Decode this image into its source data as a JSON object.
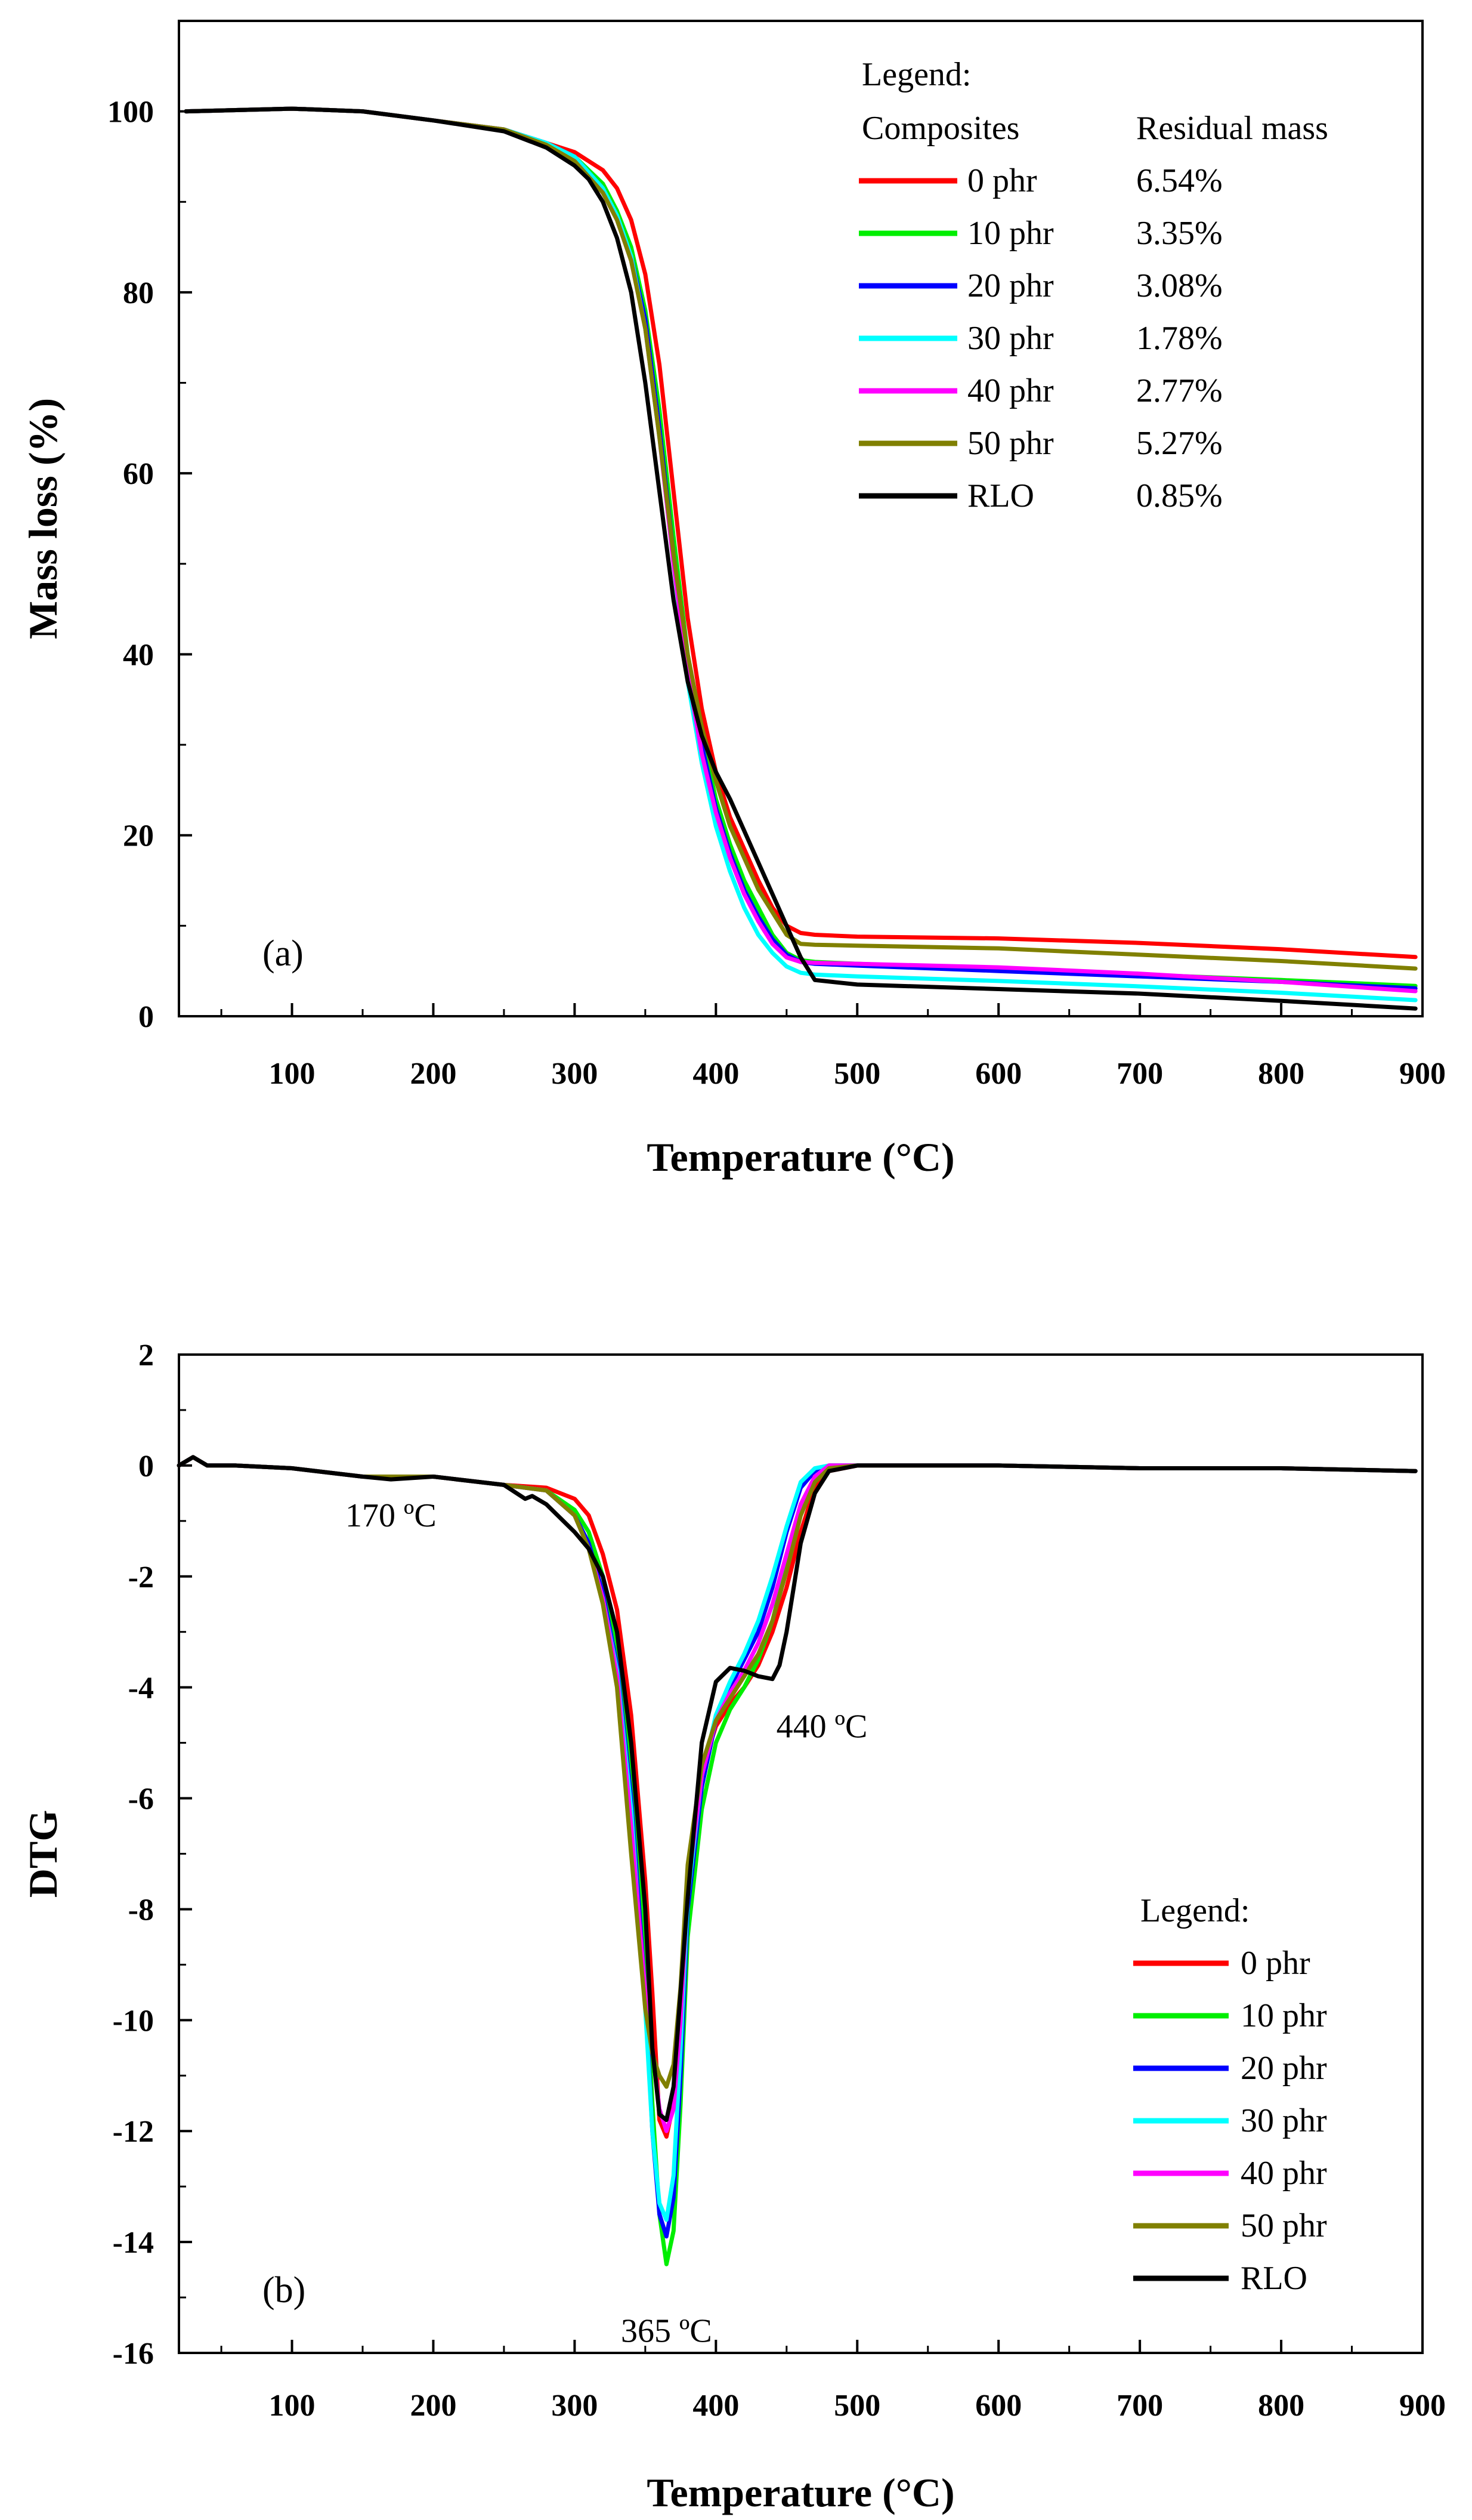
{
  "chart_data": [
    {
      "type": "line",
      "panel_label": "(a)",
      "xlabel": "Temperature (°C)",
      "ylabel": "Mass loss (%)",
      "xlim": [
        20,
        900
      ],
      "ylim": [
        0,
        110
      ],
      "xticks": [
        100,
        200,
        300,
        400,
        500,
        600,
        700,
        800,
        900
      ],
      "yticks": [
        0,
        20,
        40,
        60,
        80,
        100
      ],
      "legend": {
        "title": "Legend:",
        "col1_header": "Composites",
        "col2_header": "Residual mass",
        "position": "top-right"
      },
      "series": [
        {
          "name": "0 phr",
          "residual": "6.54%",
          "color": "#ff0000",
          "x": [
            25,
            100,
            150,
            200,
            250,
            280,
            300,
            320,
            330,
            340,
            350,
            360,
            370,
            380,
            390,
            400,
            410,
            420,
            430,
            440,
            450,
            460,
            470,
            500,
            600,
            700,
            800,
            895
          ],
          "y": [
            100,
            100.3,
            100,
            99,
            98,
            96.5,
            95.5,
            93.5,
            91.5,
            88,
            82,
            72,
            58,
            44,
            34,
            27,
            22,
            18.5,
            15,
            12,
            10,
            9.2,
            9,
            8.8,
            8.6,
            8.1,
            7.4,
            6.54
          ]
        },
        {
          "name": "10 phr",
          "residual": "3.35%",
          "color": "#00ee00",
          "x": [
            25,
            100,
            150,
            200,
            250,
            280,
            300,
            320,
            330,
            340,
            350,
            360,
            370,
            380,
            390,
            400,
            410,
            420,
            430,
            440,
            450,
            460,
            470,
            500,
            600,
            700,
            800,
            895
          ],
          "y": [
            100,
            100.3,
            100,
            99,
            98,
            96.5,
            95,
            92,
            89,
            85,
            78,
            67,
            53,
            40,
            31,
            24,
            19,
            15,
            12,
            9,
            7,
            6.2,
            6,
            5.8,
            5.2,
            4.6,
            4,
            3.35
          ]
        },
        {
          "name": "20 phr",
          "residual": "3.08%",
          "color": "#0000ff",
          "x": [
            25,
            100,
            150,
            200,
            250,
            280,
            300,
            320,
            330,
            340,
            350,
            360,
            370,
            380,
            390,
            400,
            410,
            420,
            430,
            440,
            450,
            460,
            470,
            500,
            600,
            700,
            800,
            895
          ],
          "y": [
            100,
            100.3,
            100,
            99,
            98,
            96.5,
            95,
            91.5,
            88.5,
            84,
            77,
            65,
            51,
            39,
            30,
            23,
            18,
            14,
            11,
            8.5,
            6.8,
            6,
            5.8,
            5.6,
            5,
            4.4,
            3.8,
            3.08
          ]
        },
        {
          "name": "30 phr",
          "residual": "1.78%",
          "color": "#00ffff",
          "x": [
            25,
            100,
            150,
            200,
            250,
            280,
            300,
            320,
            330,
            340,
            350,
            360,
            370,
            380,
            390,
            400,
            410,
            420,
            430,
            440,
            450,
            460,
            470,
            500,
            600,
            700,
            800,
            895
          ],
          "y": [
            100,
            100.3,
            100,
            99,
            98,
            96.5,
            95,
            91.5,
            88.5,
            84,
            76,
            64,
            50,
            37,
            28,
            21,
            16,
            12,
            9,
            7,
            5.5,
            4.8,
            4.6,
            4.4,
            3.9,
            3.3,
            2.6,
            1.78
          ]
        },
        {
          "name": "40 phr",
          "residual": "2.77%",
          "color": "#ff00ff",
          "x": [
            25,
            100,
            150,
            200,
            250,
            280,
            300,
            320,
            330,
            340,
            350,
            360,
            370,
            380,
            390,
            400,
            410,
            420,
            430,
            440,
            450,
            460,
            470,
            500,
            600,
            700,
            800,
            895
          ],
          "y": [
            100,
            100.3,
            100,
            99,
            98,
            96.2,
            94.5,
            91,
            88,
            83.5,
            76,
            64,
            50,
            38,
            29,
            22.5,
            17.5,
            13.5,
            10.5,
            8,
            6.5,
            6,
            5.9,
            5.8,
            5.4,
            4.7,
            3.8,
            2.77
          ]
        },
        {
          "name": "50 phr",
          "residual": "5.27%",
          "color": "#808000",
          "x": [
            25,
            100,
            150,
            200,
            250,
            280,
            300,
            320,
            330,
            340,
            350,
            360,
            370,
            380,
            390,
            400,
            410,
            420,
            430,
            440,
            450,
            460,
            470,
            500,
            600,
            700,
            800,
            895
          ],
          "y": [
            100,
            100.3,
            100,
            99,
            98,
            96.3,
            94.5,
            91,
            88,
            83.5,
            76,
            64,
            51,
            40,
            32,
            26,
            21,
            17.5,
            14,
            11.5,
            9,
            8,
            7.9,
            7.8,
            7.5,
            6.8,
            6.1,
            5.27
          ]
        },
        {
          "name": "RLO",
          "residual": "0.85%",
          "color": "#000000",
          "x": [
            25,
            100,
            150,
            200,
            250,
            280,
            300,
            310,
            320,
            330,
            340,
            350,
            360,
            370,
            380,
            390,
            400,
            410,
            420,
            430,
            440,
            450,
            460,
            470,
            500,
            600,
            700,
            800,
            895
          ],
          "y": [
            100,
            100.3,
            100,
            99,
            97.8,
            96,
            94,
            92.5,
            90,
            86,
            80,
            70,
            58,
            46,
            37,
            31,
            27,
            24,
            20.5,
            17,
            13.5,
            10,
            6.5,
            4,
            3.5,
            3,
            2.5,
            1.7,
            0.85
          ]
        }
      ]
    },
    {
      "type": "line",
      "panel_label": "(b)",
      "xlabel": "Temperature (°C)",
      "ylabel": "DTG",
      "xlim": [
        20,
        900
      ],
      "ylim": [
        -16,
        2
      ],
      "xticks": [
        100,
        200,
        300,
        400,
        500,
        600,
        700,
        800,
        900
      ],
      "yticks": [
        2,
        0,
        -2,
        -4,
        -6,
        -8,
        -10,
        -12,
        -14,
        -16
      ],
      "legend": {
        "title": "Legend:",
        "position": "bottom-right"
      },
      "annotations": [
        {
          "text": "170 ºC",
          "x": 170,
          "y": -1.1
        },
        {
          "text": "440 ºC",
          "x": 475,
          "y": -4.9
        },
        {
          "text": "365 ºC",
          "x": 365,
          "y": -15.8
        }
      ],
      "series": [
        {
          "name": "0 phr",
          "color": "#ff0000",
          "x": [
            20,
            30,
            40,
            60,
            100,
            150,
            170,
            200,
            250,
            280,
            300,
            310,
            320,
            330,
            340,
            350,
            355,
            360,
            365,
            370,
            375,
            380,
            390,
            400,
            410,
            420,
            430,
            440,
            450,
            460,
            470,
            480,
            500,
            600,
            700,
            800,
            895
          ],
          "y": [
            0,
            0.15,
            0,
            0,
            -0.05,
            -0.2,
            -0.2,
            -0.2,
            -0.35,
            -0.4,
            -0.6,
            -0.9,
            -1.6,
            -2.6,
            -4.5,
            -7.5,
            -9.5,
            -11.8,
            -12.1,
            -11.5,
            -9.5,
            -7.5,
            -5.5,
            -4.7,
            -4.3,
            -4,
            -3.6,
            -3,
            -2.2,
            -1.2,
            -0.4,
            -0.1,
            0,
            0,
            -0.05,
            -0.05,
            -0.1
          ]
        },
        {
          "name": "10 phr",
          "color": "#00ee00",
          "x": [
            20,
            30,
            40,
            60,
            100,
            150,
            170,
            200,
            250,
            280,
            300,
            310,
            320,
            330,
            340,
            350,
            355,
            360,
            365,
            370,
            375,
            380,
            390,
            400,
            410,
            420,
            430,
            440,
            450,
            460,
            470,
            480,
            500,
            600,
            700,
            800,
            895
          ],
          "y": [
            0,
            0.15,
            0,
            0,
            -0.05,
            -0.2,
            -0.2,
            -0.2,
            -0.35,
            -0.45,
            -0.8,
            -1.2,
            -2,
            -3.2,
            -5.5,
            -9,
            -11.5,
            -13.5,
            -14.4,
            -13.8,
            -11.5,
            -8.5,
            -6.2,
            -5,
            -4.4,
            -4,
            -3.5,
            -2.8,
            -1.8,
            -0.8,
            -0.2,
            0,
            0,
            0,
            -0.05,
            -0.05,
            -0.1
          ]
        },
        {
          "name": "20 phr",
          "color": "#0000ff",
          "x": [
            20,
            30,
            40,
            60,
            100,
            150,
            170,
            200,
            250,
            280,
            300,
            310,
            320,
            330,
            340,
            350,
            355,
            360,
            365,
            370,
            375,
            380,
            390,
            400,
            410,
            420,
            430,
            440,
            450,
            460,
            470,
            480,
            500,
            600,
            700,
            800,
            895
          ],
          "y": [
            0,
            0.15,
            0,
            0,
            -0.05,
            -0.2,
            -0.2,
            -0.2,
            -0.35,
            -0.45,
            -0.9,
            -1.4,
            -2.3,
            -3.6,
            -6,
            -9.5,
            -12,
            -13.5,
            -13.9,
            -13.2,
            -11,
            -8,
            -5.8,
            -4.6,
            -4,
            -3.5,
            -3,
            -2.2,
            -1.2,
            -0.4,
            -0.1,
            0,
            0,
            0,
            -0.05,
            -0.05,
            -0.1
          ]
        },
        {
          "name": "30 phr",
          "color": "#00ffff",
          "x": [
            20,
            30,
            40,
            60,
            100,
            150,
            170,
            200,
            250,
            280,
            300,
            310,
            320,
            330,
            340,
            350,
            355,
            360,
            365,
            370,
            375,
            380,
            390,
            400,
            410,
            420,
            430,
            440,
            450,
            460,
            470,
            480,
            500,
            600,
            700,
            800,
            895
          ],
          "y": [
            0,
            0.15,
            0,
            0,
            -0.05,
            -0.2,
            -0.2,
            -0.2,
            -0.35,
            -0.45,
            -0.9,
            -1.5,
            -2.4,
            -3.7,
            -6.2,
            -9.8,
            -12,
            -13.3,
            -13.6,
            -12.8,
            -10.5,
            -7.8,
            -5.6,
            -4.5,
            -3.9,
            -3.4,
            -2.8,
            -2,
            -1.1,
            -0.3,
            -0.05,
            0,
            0,
            0,
            -0.05,
            -0.05,
            -0.1
          ]
        },
        {
          "name": "40 phr",
          "color": "#ff00ff",
          "x": [
            20,
            30,
            40,
            60,
            100,
            150,
            170,
            200,
            250,
            280,
            300,
            310,
            320,
            330,
            340,
            350,
            355,
            360,
            365,
            370,
            375,
            380,
            390,
            400,
            410,
            420,
            430,
            440,
            450,
            460,
            470,
            480,
            500,
            600,
            700,
            800,
            895
          ],
          "y": [
            0,
            0.15,
            0,
            0,
            -0.05,
            -0.2,
            -0.2,
            -0.2,
            -0.35,
            -0.45,
            -0.9,
            -1.5,
            -2.4,
            -3.8,
            -6.5,
            -9.5,
            -10.5,
            -11.6,
            -12,
            -11.6,
            -10,
            -7.6,
            -5.6,
            -4.6,
            -4.1,
            -3.7,
            -3.2,
            -2.5,
            -1.6,
            -0.7,
            -0.2,
            0,
            0,
            0,
            -0.05,
            -0.05,
            -0.1
          ]
        },
        {
          "name": "50 phr",
          "color": "#808000",
          "x": [
            20,
            30,
            40,
            60,
            100,
            150,
            170,
            200,
            250,
            280,
            300,
            310,
            320,
            330,
            340,
            350,
            355,
            360,
            365,
            370,
            375,
            380,
            390,
            400,
            410,
            420,
            430,
            440,
            450,
            460,
            470,
            480,
            500,
            600,
            700,
            800,
            895
          ],
          "y": [
            0,
            0.15,
            0,
            0,
            -0.05,
            -0.2,
            -0.2,
            -0.2,
            -0.35,
            -0.45,
            -0.9,
            -1.5,
            -2.5,
            -4,
            -7,
            -9.8,
            -10.6,
            -11,
            -11.2,
            -10.8,
            -9.4,
            -7.2,
            -5.4,
            -4.6,
            -4.2,
            -3.8,
            -3.4,
            -2.8,
            -1.9,
            -0.9,
            -0.3,
            -0.05,
            0,
            0,
            -0.05,
            -0.05,
            -0.1
          ]
        },
        {
          "name": "RLO",
          "color": "#000000",
          "x": [
            20,
            30,
            40,
            60,
            100,
            150,
            170,
            200,
            250,
            265,
            270,
            280,
            300,
            310,
            320,
            330,
            340,
            350,
            355,
            360,
            365,
            370,
            375,
            380,
            390,
            400,
            410,
            420,
            430,
            440,
            445,
            450,
            455,
            460,
            470,
            480,
            500,
            600,
            700,
            800,
            895
          ],
          "y": [
            0,
            0.15,
            0,
            0,
            -0.05,
            -0.2,
            -0.25,
            -0.2,
            -0.35,
            -0.6,
            -0.55,
            -0.7,
            -1.2,
            -1.5,
            -2,
            -3,
            -5,
            -8,
            -10.5,
            -11.7,
            -11.8,
            -11.2,
            -9.5,
            -7.8,
            -5,
            -3.9,
            -3.65,
            -3.7,
            -3.8,
            -3.85,
            -3.6,
            -3,
            -2.2,
            -1.4,
            -0.5,
            -0.1,
            0,
            0,
            -0.05,
            -0.05,
            -0.1
          ]
        }
      ]
    }
  ]
}
